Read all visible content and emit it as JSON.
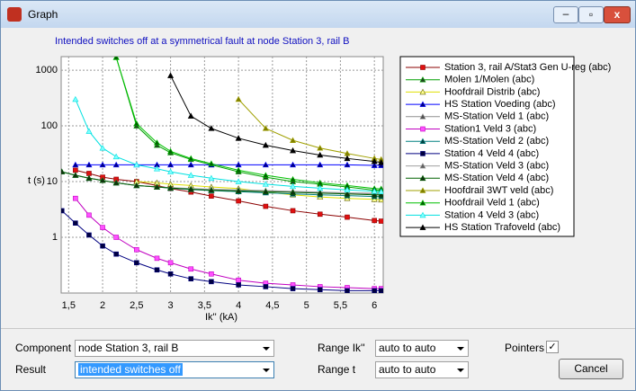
{
  "window": {
    "title": "Graph"
  },
  "chart_data": {
    "type": "line",
    "title": "Intended switches off at a symmetrical fault at node Station 3, rail B",
    "x_label": "Ik'' (kA)",
    "y_label": "t (s)",
    "x": [
      1.4,
      1.6,
      1.8,
      2.0,
      2.2,
      2.5,
      2.8,
      3.0,
      3.3,
      3.6,
      4.0,
      4.4,
      4.8,
      5.2,
      5.6,
      6.0,
      6.1
    ],
    "xlim": [
      1.39,
      6.13
    ],
    "xticks": [
      {
        "value": 1.5,
        "label": "1,5"
      },
      2,
      {
        "value": 2.5,
        "label": "2,5"
      },
      3,
      {
        "value": 3.5,
        "label": "3,5"
      },
      4,
      {
        "value": 4.5,
        "label": "4,5"
      },
      5,
      {
        "value": 5.5,
        "label": "5,5"
      },
      6
    ],
    "ylim": [
      0.1,
      1750
    ],
    "yticks": [
      1,
      10,
      100,
      1000
    ],
    "log_y": true,
    "grid": true,
    "legend": "right",
    "series": [
      {
        "name": "Station 3, rail A/Stat3 Gen U-reg (abc)",
        "color": "#8b0000",
        "marker": "square",
        "marker_color": "#e01010",
        "values": [
          null,
          16,
          14,
          12,
          11,
          10,
          8.5,
          7.5,
          6.5,
          5.5,
          4.5,
          3.6,
          3,
          2.6,
          2.3,
          2,
          1.95
        ]
      },
      {
        "name": "Molen 1/Molen (abc)",
        "color": "#00a000",
        "marker": "triangle",
        "marker_color": "#204020",
        "values": [
          null,
          null,
          null,
          null,
          1700,
          100,
          45,
          33,
          25,
          20,
          15,
          12,
          10,
          9,
          8,
          7,
          7
        ]
      },
      {
        "name": "Hoofdrail Distrib (abc)",
        "color": "#e0e000",
        "marker": "triangle",
        "marker_color": "#ffff90",
        "values": [
          null,
          null,
          null,
          null,
          null,
          10,
          9.5,
          9,
          8.5,
          8,
          7.5,
          6.5,
          5.8,
          5.3,
          5,
          4.8,
          4.7
        ]
      },
      {
        "name": "HS Station Voeding (abc)",
        "color": "#0000ff",
        "marker": "triangle",
        "marker_color": "#000080",
        "values": [
          null,
          20,
          20,
          20,
          20,
          20,
          20,
          20,
          20,
          20,
          20,
          20,
          20,
          20,
          20,
          19.5,
          19.5
        ]
      },
      {
        "name": "MS-Station Veld 1 (abc)",
        "color": "#909090",
        "marker": "triangle",
        "marker_color": "#505050",
        "values": [
          15,
          13,
          11.5,
          10.5,
          9.5,
          8.5,
          8,
          7.7,
          7.4,
          7.2,
          7,
          6.8,
          6.6,
          6.4,
          6.2,
          6,
          6
        ]
      },
      {
        "name": "Station1 Veld 3 (abc)",
        "color": "#c000c0",
        "marker": "square",
        "marker_color": "#ff50ff",
        "values": [
          null,
          5,
          2.5,
          1.5,
          1,
          0.6,
          0.42,
          0.35,
          0.27,
          0.22,
          0.17,
          0.15,
          0.14,
          0.13,
          0.125,
          0.12,
          0.12
        ]
      },
      {
        "name": "MS-Station Veld 2 (abc)",
        "color": "#008080",
        "marker": "triangle",
        "marker_color": "#004040",
        "values": [
          15,
          13,
          11.5,
          10.5,
          9.5,
          8.5,
          8,
          7.6,
          7.2,
          6.9,
          6.6,
          6.3,
          6,
          5.8,
          5.6,
          5.4,
          5.4
        ]
      },
      {
        "name": "Station 4 Veld 4 (abc)",
        "color": "#000080",
        "marker": "square",
        "marker_color": "#000040",
        "values": [
          3,
          1.8,
          1.1,
          0.7,
          0.5,
          0.35,
          0.26,
          0.22,
          0.18,
          0.16,
          0.14,
          0.13,
          0.12,
          0.115,
          0.11,
          0.11,
          0.11
        ]
      },
      {
        "name": "MS-Station Veld 3 (abc)",
        "color": "#a0a0a0",
        "marker": "triangle",
        "marker_color": "#606060",
        "values": [
          15,
          13,
          11.5,
          10.5,
          9.5,
          8.5,
          8,
          7.8,
          7.5,
          7.3,
          7.1,
          6.9,
          6.7,
          6.5,
          6.3,
          6.2,
          6.2
        ]
      },
      {
        "name": "MS-Station Veld 4 (abc)",
        "color": "#006000",
        "marker": "triangle",
        "marker_color": "#103010",
        "values": [
          15,
          13,
          11.5,
          10.5,
          9.5,
          8.5,
          8,
          7.7,
          7.3,
          7,
          6.8,
          6.6,
          6.4,
          6.2,
          6,
          5.8,
          5.8
        ]
      },
      {
        "name": "Hoofdrail 3WT veld (abc)",
        "color": "#a0a000",
        "marker": "triangle",
        "marker_color": "#808000",
        "values": [
          null,
          null,
          null,
          null,
          null,
          null,
          null,
          null,
          null,
          null,
          300,
          90,
          55,
          40,
          32,
          26,
          25
        ]
      },
      {
        "name": "Hoofdrail Veld 1 (abc)",
        "color": "#00c000",
        "marker": "triangle",
        "marker_color": "#006000",
        "values": [
          null,
          null,
          null,
          null,
          1700,
          110,
          50,
          35,
          26,
          21,
          16,
          13,
          11,
          9.5,
          8.5,
          7.5,
          7.4
        ]
      },
      {
        "name": "Station 4 Veld 3 (abc)",
        "color": "#00e0e0",
        "marker": "triangle",
        "marker_color": "#80ffff",
        "values": [
          null,
          300,
          80,
          40,
          28,
          20,
          17,
          15,
          13,
          11.5,
          10,
          9,
          8.2,
          7.6,
          7.1,
          6.7,
          6.6
        ]
      },
      {
        "name": "HS Station Trafoveld (abc)",
        "color": "#000000",
        "marker": "triangle",
        "marker_color": "#000000",
        "values": [
          null,
          null,
          null,
          null,
          null,
          null,
          null,
          800,
          150,
          90,
          60,
          45,
          36,
          30,
          26,
          23,
          22
        ]
      }
    ]
  },
  "controls": {
    "component": {
      "label": "Component",
      "value": "node Station 3, rail B"
    },
    "result": {
      "label": "Result",
      "value": "intended switches off"
    },
    "range_ik": {
      "label": "Range Ik''",
      "value": "auto to auto"
    },
    "range_t": {
      "label": "Range t",
      "value": "auto to auto"
    },
    "pointers": {
      "label": "Pointers",
      "checked": true
    },
    "cancel": "Cancel"
  }
}
